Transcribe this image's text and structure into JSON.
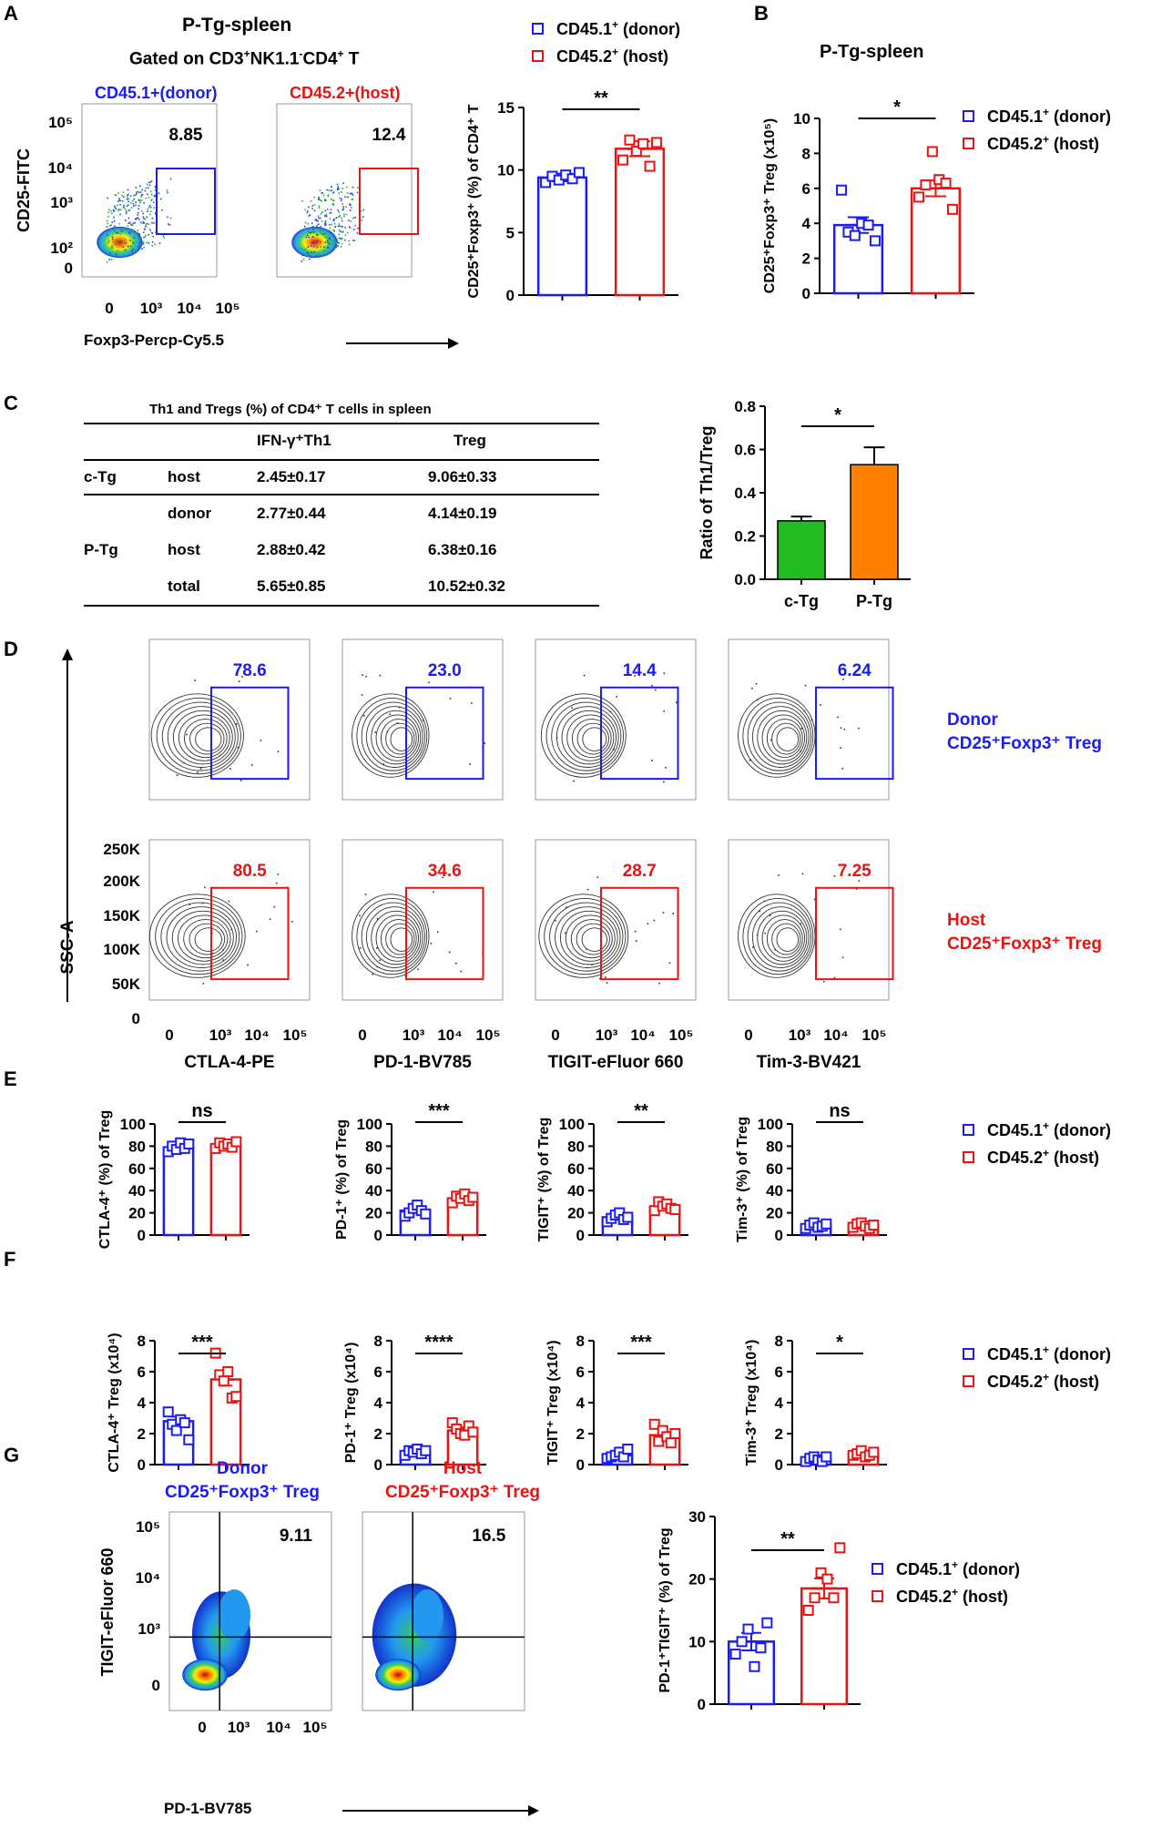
{
  "colors": {
    "donor": "#1a1aff",
    "host": "#ee1111",
    "cTg": "#22bb22",
    "pTg": "#ff8000"
  },
  "panel_letters": [
    "A",
    "B",
    "C",
    "D",
    "E",
    "F",
    "G"
  ],
  "legend": {
    "donor_base": "CD45.1",
    "donor_sup": "+",
    "donor_rest": " (donor)",
    "host_base": "CD45.2",
    "host_sup": "+",
    "host_rest": " (host)"
  },
  "panel_A": {
    "title": "P-Tg-spleen",
    "subtitle_pre": "Gated on CD3",
    "subtitle_sup1": "+",
    "subtitle_mid": "NK1.1",
    "subtitle_sup2": "-",
    "subtitle_mid2": "CD4",
    "subtitle_sup3": "+",
    "subtitle_post": " T",
    "donor_label": "CD45.1+(donor)",
    "host_label": "CD45.2+(host)",
    "donor_value": "8.85",
    "host_value": "12.4",
    "y_axis": "CD25-FITC",
    "x_axis": "Foxp3-Percp-Cy5.5",
    "y_ticks": [
      "10⁵",
      "10⁴",
      "10³",
      "10²",
      "0"
    ],
    "x_ticks": [
      "0",
      "10³",
      "10⁴",
      "10⁵"
    ],
    "bar_ylabel": "CD25⁺Foxp3⁺ (%) of CD4⁺ T",
    "significance": "**"
  },
  "panel_B": {
    "title": "P-Tg-spleen",
    "ylabel": "CD25⁺Foxp3⁺ Treg (x10⁵)",
    "significance": "*"
  },
  "panel_C": {
    "table_title": "Th1 and  Tregs (%) of CD4⁺ T cells in spleen",
    "col_headers": [
      "IFN-γ⁺Th1",
      "Treg"
    ],
    "rows": [
      {
        "group": "c-Tg",
        "sub": "host",
        "th1": "2.45±0.17",
        "treg": "9.06±0.33"
      },
      {
        "group": "",
        "sub": "donor",
        "th1": "2.77±0.44",
        "treg": "4.14±0.19"
      },
      {
        "group": "P-Tg",
        "sub": "host",
        "th1": "2.88±0.42",
        "treg": "6.38±0.16"
      },
      {
        "group": "",
        "sub": "total",
        "th1": "5.65±0.85",
        "treg": "10.52±0.32"
      }
    ],
    "ratio_ylabel": "Ratio of Th1/Treg",
    "significance": "*"
  },
  "panel_D": {
    "y_axis": "SSC-A",
    "y_ticks": [
      "250K",
      "200K",
      "150K",
      "100K",
      "50K",
      "0"
    ],
    "x_ticks": [
      "0",
      "10³",
      "10⁴",
      "10⁵"
    ],
    "x_labels": [
      "CTLA-4-PE",
      "PD-1-BV785",
      "TIGIT-eFluor 660",
      "Tim-3-BV421"
    ],
    "donor_values": [
      "78.6",
      "23.0",
      "14.4",
      "6.24"
    ],
    "host_values": [
      "80.5",
      "34.6",
      "28.7",
      "7.25"
    ],
    "donor_side": [
      "Donor",
      "CD25⁺Foxp3⁺ Treg"
    ],
    "host_side": [
      "Host",
      "CD25⁺Foxp3⁺ Treg"
    ]
  },
  "panel_E": {
    "ylabels": [
      "CTLA-4⁺ (%) of Treg",
      "PD-1⁺ (%) of Treg",
      "TIGIT⁺ (%) of Treg",
      "Tim-3⁺ (%) of Treg"
    ],
    "significance": [
      "ns",
      "***",
      "**",
      "ns"
    ]
  },
  "panel_F": {
    "ylabels": [
      "CTLA-4⁺ Treg (x10⁴)",
      "PD-1⁺ Treg (x10⁴)",
      "TIGIT⁺ Treg (x10⁴)",
      "Tim-3⁺ Treg (x10⁴)"
    ],
    "significance": [
      "***",
      "****",
      "***",
      "*"
    ]
  },
  "panel_G": {
    "donor_title": [
      "Donor",
      "CD25⁺Foxp3⁺ Treg"
    ],
    "host_title": [
      "Host",
      "CD25⁺Foxp3⁺ Treg"
    ],
    "donor_value": "9.11",
    "host_value": "16.5",
    "y_axis": "TIGIT-eFluor 660",
    "x_axis": "PD-1-BV785",
    "y_ticks": [
      "10⁵",
      "10⁴",
      "10³",
      "0"
    ],
    "x_ticks": [
      "0",
      "10³",
      "10⁴",
      "10⁵"
    ],
    "bar_ylabel": "PD-1⁺TIGIT⁺ (%) of Treg",
    "significance": "**"
  },
  "chart_data": [
    {
      "id": "A",
      "type": "bar",
      "title": "P-Tg-spleen",
      "ylabel": "CD25+Foxp3+ (%) of CD4+ T",
      "categories": [
        "CD45.1+ (donor)",
        "CD45.2+ (host)"
      ],
      "values": [
        9.4,
        11.7
      ],
      "errors": [
        0.3,
        0.6
      ],
      "points": [
        [
          9.0,
          9.5,
          9.2,
          9.6,
          9.3,
          9.8
        ],
        [
          10.8,
          12.4,
          11.5,
          12.1,
          10.3,
          12.2
        ]
      ],
      "ylim": [
        0,
        15
      ],
      "yticks": [
        0,
        5,
        10,
        15
      ]
    },
    {
      "id": "B",
      "type": "bar",
      "title": "P-Tg-spleen",
      "ylabel": "CD25+Foxp3+ Treg (x10^5)",
      "categories": [
        "CD45.1+ (donor)",
        "CD45.2+ (host)"
      ],
      "values": [
        3.9,
        6.0
      ],
      "errors": [
        0.45,
        0.45
      ],
      "points": [
        [
          5.9,
          3.5,
          3.3,
          4.0,
          3.9,
          3.0
        ],
        [
          5.5,
          6.2,
          8.1,
          6.5,
          6.3,
          4.8
        ]
      ],
      "ylim": [
        0,
        10
      ],
      "yticks": [
        0,
        2,
        4,
        6,
        8,
        10
      ]
    },
    {
      "id": "C",
      "type": "bar",
      "ylabel": "Ratio of Th1/Treg",
      "categories": [
        "c-Tg",
        "P-Tg"
      ],
      "values": [
        0.27,
        0.53
      ],
      "errors": [
        0.02,
        0.08
      ],
      "ylim": [
        0,
        0.8
      ],
      "yticks": [
        0.0,
        0.2,
        0.4,
        0.6,
        0.8
      ]
    },
    {
      "id": "E1",
      "type": "bar",
      "ylabel": "CTLA-4+ (%) of Treg",
      "categories": [
        "CD45.1+ (donor)",
        "CD45.2+ (host)"
      ],
      "values": [
        79,
        81
      ],
      "errors": [
        1.5,
        1.2
      ],
      "points": [
        [
          75,
          80,
          77,
          83,
          78,
          82
        ],
        [
          78,
          83,
          80,
          82,
          79,
          84
        ]
      ],
      "ylim": [
        0,
        100
      ],
      "yticks": [
        0,
        20,
        40,
        60,
        80,
        100
      ]
    },
    {
      "id": "E2",
      "type": "bar",
      "ylabel": "PD-1+ (%) of Treg",
      "categories": [
        "CD45.1+ (donor)",
        "CD45.2+ (host)"
      ],
      "values": [
        22,
        33
      ],
      "errors": [
        1.5,
        1.2
      ],
      "points": [
        [
          17,
          20,
          24,
          27,
          22,
          19
        ],
        [
          29,
          35,
          33,
          37,
          31,
          34
        ]
      ],
      "ylim": [
        0,
        100
      ],
      "yticks": [
        0,
        20,
        40,
        60,
        80,
        100
      ]
    },
    {
      "id": "E3",
      "type": "bar",
      "ylabel": "TIGIT+ (%) of Treg",
      "categories": [
        "CD45.1+ (donor)",
        "CD45.2+ (host)"
      ],
      "values": [
        16,
        25
      ],
      "errors": [
        1.5,
        1.5
      ],
      "points": [
        [
          12,
          15,
          18,
          20,
          14,
          16
        ],
        [
          22,
          30,
          26,
          28,
          24,
          23
        ]
      ],
      "ylim": [
        0,
        100
      ],
      "yticks": [
        0,
        20,
        40,
        60,
        80,
        100
      ]
    },
    {
      "id": "E4",
      "type": "bar",
      "ylabel": "Tim-3+ (%) of Treg",
      "categories": [
        "CD45.1+ (donor)",
        "CD45.2+ (host)"
      ],
      "values": [
        8,
        9
      ],
      "errors": [
        1.0,
        1.0
      ],
      "points": [
        [
          6,
          9,
          11,
          7,
          8,
          10
        ],
        [
          7,
          10,
          11,
          8,
          6,
          9
        ]
      ],
      "ylim": [
        0,
        100
      ],
      "yticks": [
        0,
        20,
        40,
        60,
        80,
        100
      ]
    },
    {
      "id": "F1",
      "type": "bar",
      "ylabel": "CTLA-4+ Treg (x10^4)",
      "categories": [
        "CD45.1+ (donor)",
        "CD45.2+ (host)"
      ],
      "values": [
        2.8,
        5.5
      ],
      "errors": [
        0.3,
        0.4
      ],
      "points": [
        [
          3.4,
          2.6,
          2.2,
          2.9,
          2.7,
          1.6
        ],
        [
          7.2,
          5.8,
          5.4,
          6.0,
          4.3,
          4.4
        ]
      ],
      "ylim": [
        0,
        8
      ],
      "yticks": [
        0,
        2,
        4,
        6,
        8
      ]
    },
    {
      "id": "F2",
      "type": "bar",
      "ylabel": "PD-1+ Treg (x10^4)",
      "categories": [
        "CD45.1+ (donor)",
        "CD45.2+ (host)"
      ],
      "values": [
        0.8,
        2.2
      ],
      "errors": [
        0.1,
        0.2
      ],
      "points": [
        [
          0.6,
          0.9,
          0.8,
          1.0,
          0.7,
          0.9
        ],
        [
          2.7,
          2.3,
          2.0,
          1.9,
          2.5,
          2.1
        ]
      ],
      "ylim": [
        0,
        8
      ],
      "yticks": [
        0,
        2,
        4,
        6,
        8
      ]
    },
    {
      "id": "F3",
      "type": "bar",
      "ylabel": "TIGIT+ Treg (x10^4)",
      "categories": [
        "CD45.1+ (donor)",
        "CD45.2+ (host)"
      ],
      "values": [
        0.6,
        1.9
      ],
      "errors": [
        0.1,
        0.2
      ],
      "points": [
        [
          0.4,
          0.5,
          0.6,
          0.8,
          0.5,
          1.0
        ],
        [
          2.6,
          1.5,
          2.2,
          1.8,
          1.4,
          2.0
        ]
      ],
      "ylim": [
        0,
        8
      ],
      "yticks": [
        0,
        2,
        4,
        6,
        8
      ]
    },
    {
      "id": "F4",
      "type": "bar",
      "ylabel": "Tim-3+ Treg (x10^4)",
      "categories": [
        "CD45.1+ (donor)",
        "CD45.2+ (host)"
      ],
      "values": [
        0.35,
        0.65
      ],
      "errors": [
        0.08,
        0.08
      ],
      "points": [
        [
          0.2,
          0.4,
          0.5,
          0.3,
          0.2,
          0.5
        ],
        [
          0.6,
          0.7,
          0.9,
          0.5,
          0.6,
          0.8
        ]
      ],
      "ylim": [
        0,
        8
      ],
      "yticks": [
        0,
        2,
        4,
        6,
        8
      ]
    },
    {
      "id": "G",
      "type": "bar",
      "ylabel": "PD-1+TIGIT+ (%) of Treg",
      "categories": [
        "CD45.1+ (donor)",
        "CD45.2+ (host)"
      ],
      "values": [
        10,
        18.5
      ],
      "errors": [
        1.4,
        1.6
      ],
      "points": [
        [
          8,
          10,
          12,
          6,
          9,
          13
        ],
        [
          15,
          17,
          21,
          20,
          17,
          25
        ]
      ],
      "ylim": [
        0,
        30
      ],
      "yticks": [
        0,
        10,
        20,
        30
      ]
    }
  ]
}
